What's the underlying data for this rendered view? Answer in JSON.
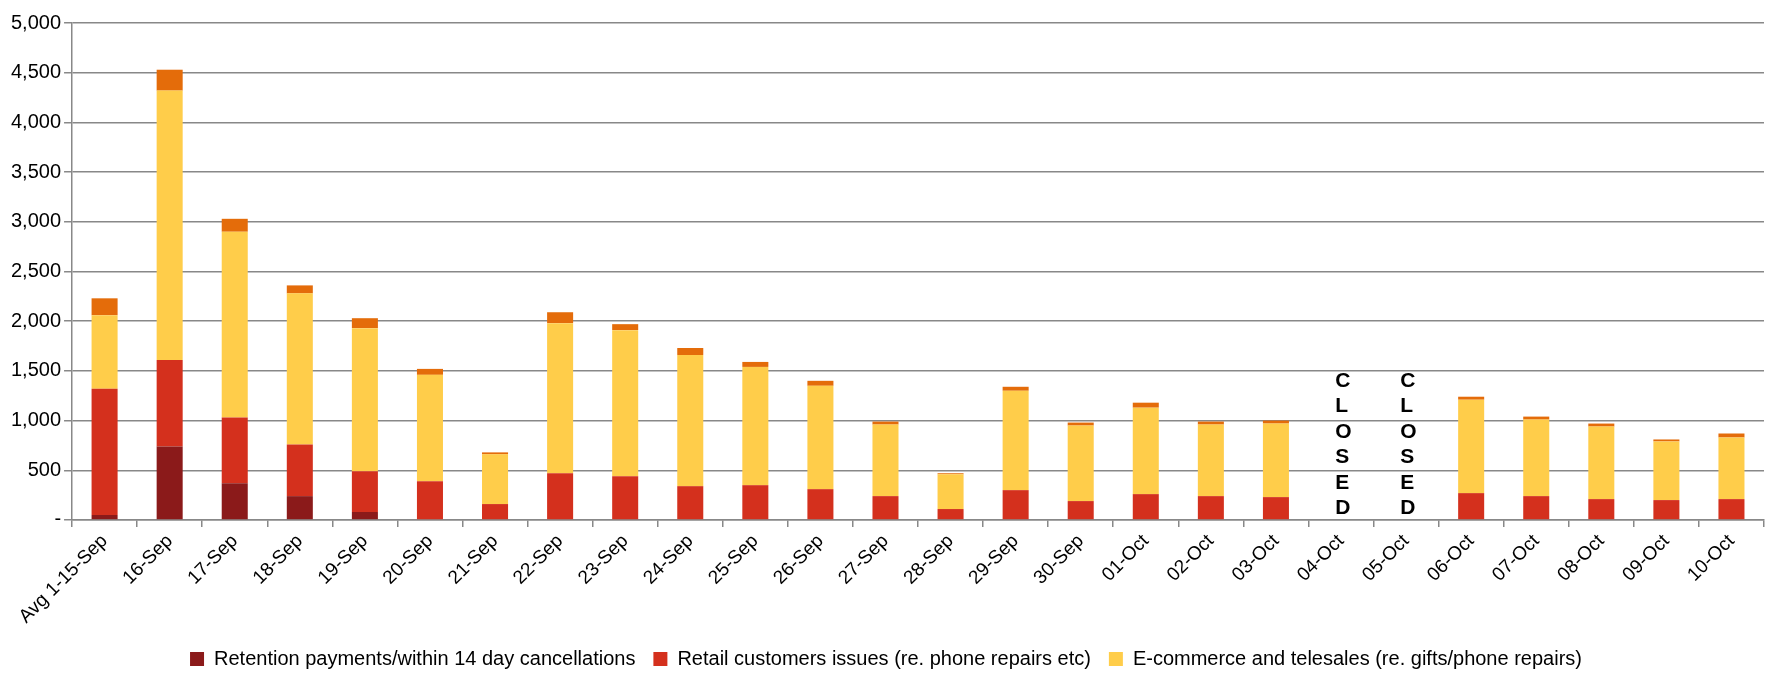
{
  "chart_data": {
    "type": "bar",
    "stacked": true,
    "grid": "y",
    "legend": "bottom",
    "categories": [
      "Avg 1-15-Sep",
      "16-Sep",
      "17-Sep",
      "18-Sep",
      "19-Sep",
      "20-Sep",
      "21-Sep",
      "22-Sep",
      "23-Sep",
      "24-Sep",
      "25-Sep",
      "26-Sep",
      "27-Sep",
      "28-Sep",
      "29-Sep",
      "30-Sep",
      "01-Oct",
      "02-Oct",
      "03-Oct",
      "04-Oct",
      "05-Oct",
      "06-Oct",
      "07-Oct",
      "08-Oct",
      "09-Oct",
      "10-Oct"
    ],
    "series": [
      {
        "name": "Retention payments/within 14 day cancellations",
        "color": "#8b1a1a",
        "values": [
          50,
          740,
          370,
          240,
          80,
          0,
          0,
          0,
          0,
          0,
          0,
          0,
          0,
          0,
          0,
          0,
          0,
          0,
          0,
          null,
          null,
          0,
          0,
          0,
          0,
          0
        ]
      },
      {
        "name": "Retail customers issues (re. phone repairs etc)",
        "color": "#d4301d",
        "values": [
          1270,
          870,
          660,
          520,
          410,
          390,
          160,
          470,
          440,
          340,
          350,
          310,
          240,
          110,
          300,
          190,
          260,
          240,
          230,
          null,
          null,
          270,
          240,
          210,
          200,
          210
        ]
      },
      {
        "name": "E-commerce and telesales (re. gifts/phone repairs)",
        "color": "#ffcd4a",
        "values": [
          740,
          2710,
          1870,
          1520,
          1440,
          1070,
          500,
          1510,
          1470,
          1320,
          1190,
          1040,
          720,
          350,
          1000,
          760,
          870,
          720,
          740,
          null,
          null,
          940,
          770,
          730,
          590,
          620
        ]
      },
      {
        "color": "#e46c0a",
        "values": [
          170,
          210,
          130,
          80,
          100,
          60,
          20,
          110,
          60,
          70,
          50,
          50,
          30,
          10,
          40,
          30,
          50,
          30,
          30,
          null,
          null,
          30,
          30,
          30,
          20,
          40
        ]
      }
    ],
    "ylim": [
      0,
      5000
    ],
    "yticks": [
      {
        "value": 0,
        "label": "-"
      },
      {
        "value": 500,
        "label": "500"
      },
      {
        "value": 1000,
        "label": "1,000"
      },
      {
        "value": 1500,
        "label": "1,500"
      },
      {
        "value": 2000,
        "label": "2,000"
      },
      {
        "value": 2500,
        "label": "2,500"
      },
      {
        "value": 3000,
        "label": "3,000"
      },
      {
        "value": 3500,
        "label": "3,500"
      },
      {
        "value": 4000,
        "label": "4,000"
      },
      {
        "value": 4500,
        "label": "4,500"
      },
      {
        "value": 5000,
        "label": "5,000"
      }
    ],
    "annotations": [
      "CLOSED",
      "CLOSED"
    ]
  }
}
